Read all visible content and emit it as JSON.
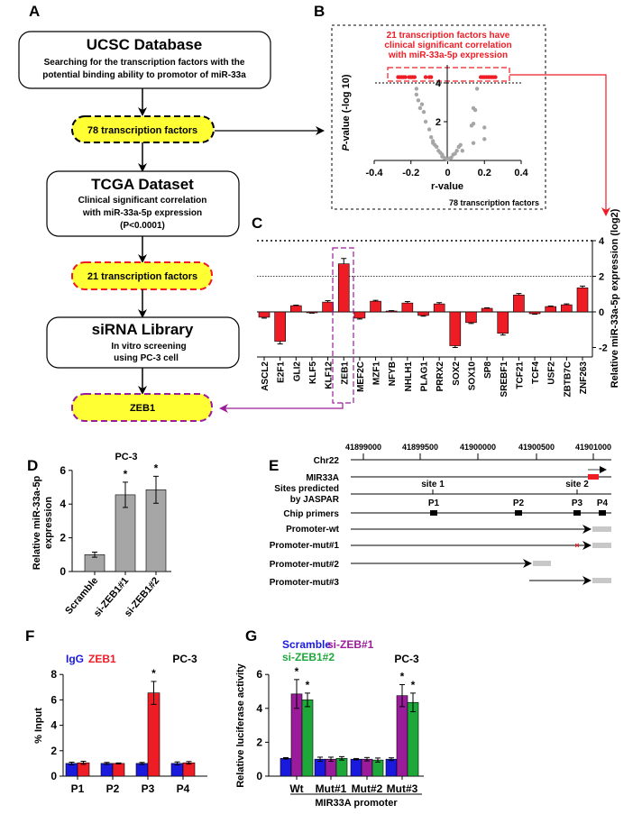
{
  "panels": {
    "a": "A",
    "b": "B",
    "c": "C",
    "d": "D",
    "e": "E",
    "f": "F",
    "g": "G"
  },
  "flow": {
    "ucsc_title": "UCSC Database",
    "ucsc_line1": "Searching for the transcription factors with the",
    "ucsc_line2": "potential binding ability to promotor of miR-33a",
    "tf78": "78 transcription factors",
    "tcga_title": "TCGA Dataset",
    "tcga_line1": "Clinical significant correlation",
    "tcga_line2": "with miR-33a-5p expression",
    "tcga_line3": "(P<0.0001)",
    "tf21": "21 transcription factors",
    "sirna_title": "siRNA Library",
    "sirna_line1": "In vitro screening",
    "sirna_line2": "using PC-3 cell",
    "zeb1": "ZEB1"
  },
  "colors": {
    "red": "#ee1c25",
    "blue": "#1a1adf",
    "purple": "#9b1c9b",
    "green": "#1ea83a",
    "gray": "#a6a6a6",
    "yellow": "#ffff33"
  },
  "gene_map": {
    "chromosome": "Chr22",
    "coords": [
      "41899000",
      "41899500",
      "41900000",
      "41900500",
      "41901000"
    ],
    "tracks": [
      "MIR33A",
      "Sites predicted",
      "by JASPAR",
      "Chip primers"
    ],
    "sites": [
      "site 1",
      "site 2"
    ],
    "primers": [
      "P1",
      "P2",
      "P3",
      "P4"
    ],
    "constructs": [
      "Promoter-wt",
      "Promoter-mut#1",
      "Promoter-mut#2",
      "Promoter-mut#3"
    ]
  },
  "chart_data": [
    {
      "panel": "B",
      "type": "scatter",
      "annotation": [
        "21 transcription factors have",
        "clinical significant correlation",
        "with miR-33a-5p expression"
      ],
      "xlabel": "r-value",
      "ylabel_italic": "P",
      "ylabel": "-value (-log 10)",
      "xlim": [
        -0.4,
        0.4
      ],
      "ylim": [
        0,
        4.5
      ],
      "xticks": [
        "-0.4",
        "-0.2",
        "0",
        "0.2",
        "0.4"
      ],
      "yticks": [
        "2",
        "4"
      ],
      "footnote": "78 transcription factors",
      "threshold": 4,
      "significant_points": [
        [
          -0.27,
          4.3
        ],
        [
          -0.26,
          4.3
        ],
        [
          -0.25,
          4.3
        ],
        [
          -0.24,
          4.3
        ],
        [
          -0.23,
          4.3
        ],
        [
          -0.21,
          4.3
        ],
        [
          -0.2,
          4.3
        ],
        [
          -0.19,
          4.3
        ],
        [
          -0.18,
          4.3
        ],
        [
          -0.12,
          4.3
        ],
        [
          -0.1,
          4.3
        ],
        [
          -0.09,
          4.3
        ],
        [
          0.18,
          4.3
        ],
        [
          0.19,
          4.3
        ],
        [
          0.22,
          4.3
        ],
        [
          0.23,
          4.3
        ],
        [
          0.24,
          4.3
        ],
        [
          0.25,
          4.3
        ],
        [
          0.26,
          4.3
        ],
        [
          0.2,
          4.3
        ],
        [
          0.21,
          4.3
        ]
      ],
      "other_points": [
        [
          -0.17,
          3.7
        ],
        [
          -0.17,
          3.4
        ],
        [
          -0.16,
          3.1
        ],
        [
          -0.15,
          2.7
        ],
        [
          -0.14,
          2.9
        ],
        [
          -0.13,
          2.5
        ],
        [
          -0.12,
          2.0
        ],
        [
          -0.1,
          1.6
        ],
        [
          -0.09,
          1.2
        ],
        [
          -0.08,
          1.0
        ],
        [
          -0.08,
          0.9
        ],
        [
          -0.07,
          0.8
        ],
        [
          -0.06,
          0.7
        ],
        [
          -0.05,
          0.5
        ],
        [
          -0.04,
          0.4
        ],
        [
          -0.03,
          0.3
        ],
        [
          -0.03,
          0.2
        ],
        [
          -0.02,
          0.15
        ],
        [
          -0.01,
          0.1
        ],
        [
          0.0,
          0.05
        ],
        [
          0.01,
          0.1
        ],
        [
          0.02,
          0.15
        ],
        [
          0.03,
          0.3
        ],
        [
          0.04,
          0.35
        ],
        [
          0.05,
          0.5
        ],
        [
          0.06,
          0.7
        ],
        [
          0.07,
          0.8
        ],
        [
          0.08,
          0.5
        ],
        [
          0.13,
          1.8
        ],
        [
          0.14,
          1.9
        ],
        [
          0.14,
          2.7
        ],
        [
          0.15,
          2.6
        ],
        [
          0.14,
          0.9
        ],
        [
          0.16,
          3.7
        ],
        [
          0.2,
          1.7
        ],
        [
          0.2,
          1.1
        ]
      ]
    },
    {
      "panel": "C",
      "type": "bar",
      "ylabel": "Relative miR-33a-5p expression (log2)",
      "ylim": [
        -2.5,
        4
      ],
      "yticks": [
        "4",
        "2",
        "0",
        "-2"
      ],
      "reference_lines": [
        4,
        2
      ],
      "highlight": "ZEB1",
      "categories": [
        "ASCL2",
        "E2F1",
        "GLI2",
        "KLF5",
        "KLF12",
        "ZEB1",
        "MEF2C",
        "MZF1",
        "NFYB",
        "NHLH1",
        "PLAG1",
        "PRRX2",
        "SOX2",
        "SOX10",
        "SP8",
        "SREBF1",
        "TCF21",
        "TCF4",
        "USF2",
        "ZBTB7C",
        "ZNF263"
      ],
      "values": [
        -0.3,
        -1.65,
        0.35,
        -0.05,
        0.55,
        2.7,
        -0.35,
        0.6,
        0.05,
        0.5,
        -0.2,
        0.45,
        -1.9,
        -0.6,
        0.2,
        -1.2,
        0.95,
        -0.1,
        0.3,
        0.4,
        1.35
      ],
      "errors": [
        0.05,
        0.15,
        0.03,
        0.02,
        0.08,
        0.3,
        0.05,
        0.05,
        0.02,
        0.08,
        0.04,
        0.07,
        0.1,
        0.05,
        0.03,
        0.1,
        0.08,
        0.03,
        0.03,
        0.05,
        0.1
      ]
    },
    {
      "panel": "D",
      "type": "bar",
      "title": "PC-3",
      "ylabel": [
        "Relative miR-33a-5p",
        "expression"
      ],
      "ylim": [
        0,
        6
      ],
      "yticks": [
        "0",
        "2",
        "4",
        "6"
      ],
      "categories": [
        "Scramble",
        "si-ZEB1#1",
        "si-ZEB1#2"
      ],
      "values": [
        1.0,
        4.55,
        4.85
      ],
      "errors": [
        0.15,
        0.75,
        0.8
      ],
      "significance": [
        "",
        "*",
        "*"
      ]
    },
    {
      "panel": "F",
      "type": "bar",
      "title": "PC-3",
      "ylabel": "% Input",
      "ylim": [
        0,
        8
      ],
      "yticks": [
        "0",
        "2",
        "4",
        "6",
        "8"
      ],
      "categories": [
        "P1",
        "P2",
        "P3",
        "P4"
      ],
      "series": [
        {
          "name": "IgG",
          "values": [
            1.0,
            1.0,
            1.0,
            1.0
          ],
          "errors": [
            0.1,
            0.08,
            0.08,
            0.12
          ]
        },
        {
          "name": "ZEB1",
          "values": [
            1.05,
            1.0,
            6.55,
            1.05
          ],
          "errors": [
            0.12,
            0.04,
            0.9,
            0.1
          ]
        }
      ],
      "significance": [
        "",
        "",
        "*",
        ""
      ]
    },
    {
      "panel": "G",
      "type": "bar",
      "title": "PC-3",
      "ylabel": "Relative luciferase activity",
      "xlabel": "MIR33A promoter",
      "ylim": [
        0,
        6
      ],
      "yticks": [
        "0",
        "2",
        "4",
        "6"
      ],
      "categories": [
        "Wt",
        "Mut#1",
        "Mut#2",
        "Mut#3"
      ],
      "series": [
        {
          "name": "Scramble",
          "values": [
            1.05,
            1.0,
            1.0,
            1.0
          ],
          "errors": [
            0.04,
            0.12,
            0.04,
            0.08
          ]
        },
        {
          "name": "si-ZEB#1",
          "values": [
            4.85,
            1.0,
            1.0,
            4.75
          ],
          "errors": [
            0.85,
            0.12,
            0.1,
            0.65
          ]
        },
        {
          "name": "si-ZEB1#2",
          "values": [
            4.5,
            1.05,
            0.95,
            4.35
          ],
          "errors": [
            0.4,
            0.1,
            0.12,
            0.55
          ]
        }
      ],
      "significance": [
        [
          "",
          "*",
          "*"
        ],
        [
          "",
          "",
          ""
        ],
        [
          "",
          "",
          ""
        ],
        [
          "",
          "*",
          "*"
        ]
      ]
    }
  ]
}
